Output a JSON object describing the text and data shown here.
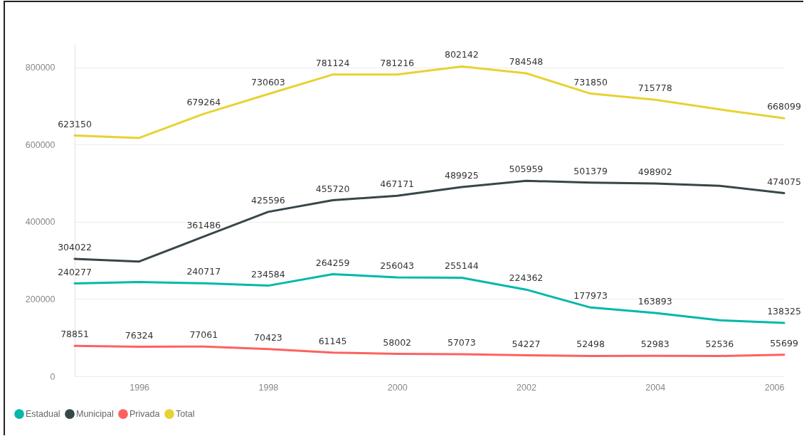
{
  "chart_data": {
    "type": "line",
    "x": [
      1995,
      1996,
      1997,
      1998,
      1999,
      2000,
      2001,
      2002,
      2003,
      2004,
      2005,
      2006
    ],
    "xlim": [
      1995,
      2006
    ],
    "xticks": [
      1996,
      1998,
      2000,
      2002,
      2004,
      2006
    ],
    "ylim": [
      0,
      860000
    ],
    "yticks": [
      0,
      200000,
      400000,
      600000,
      800000
    ],
    "grid": "y",
    "legend": "bottom left",
    "series": [
      {
        "name": "Estadual",
        "color": "#01b8aa",
        "values": [
          240277,
          244000,
          240717,
          234584,
          264259,
          256043,
          255144,
          224362,
          177973,
          163893,
          145000,
          138325
        ],
        "value_labels": [
          "240277",
          null,
          "240717",
          "234584",
          "264259",
          "256043",
          "255144",
          "224362",
          "177973",
          "163893",
          null,
          "138325"
        ]
      },
      {
        "name": "Municipal",
        "color": "#374649",
        "values": [
          304022,
          297000,
          361486,
          425596,
          455720,
          467171,
          489925,
          505959,
          501379,
          498902,
          493000,
          474075
        ],
        "value_labels": [
          "304022",
          null,
          "361486",
          "425596",
          "455720",
          "467171",
          "489925",
          "505959",
          "501379",
          "498902",
          null,
          "474075"
        ]
      },
      {
        "name": "Privada",
        "color": "#fd625e",
        "values": [
          78851,
          76324,
          77061,
          70423,
          61145,
          58002,
          57073,
          54227,
          52498,
          52983,
          52536,
          55699
        ],
        "value_labels": [
          "78851",
          "76324",
          "77061",
          "70423",
          "61145",
          "58002",
          "57073",
          "54227",
          "52498",
          "52983",
          "52536",
          "55699"
        ]
      },
      {
        "name": "Total",
        "color": "#e8d232",
        "values": [
          623150,
          617000,
          679264,
          730603,
          781124,
          781216,
          802142,
          784548,
          731850,
          715778,
          691000,
          668099
        ],
        "value_labels": [
          "623150",
          null,
          "679264",
          "730603",
          "781124",
          "781216",
          "802142",
          "784548",
          "731850",
          "715778",
          null,
          "668099"
        ]
      }
    ]
  }
}
